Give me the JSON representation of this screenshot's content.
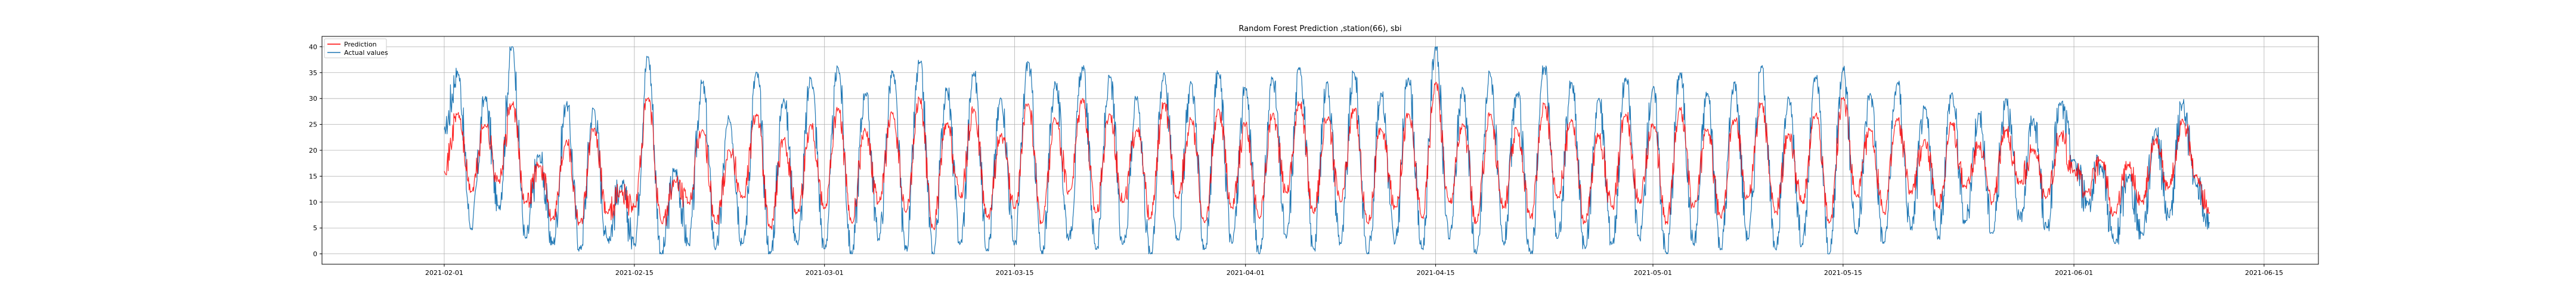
{
  "chart_data": {
    "type": "line",
    "title": "Random Forest Prediction ,station(66), sbi",
    "xlabel": "",
    "ylabel": "",
    "x_range": [
      "2021-01-23",
      "2021-06-19"
    ],
    "ylim": [
      -2,
      42
    ],
    "grid": true,
    "legend_position": "top-left",
    "x_ticks": [
      "2021-02-01",
      "2021-02-15",
      "2021-03-01",
      "2021-03-15",
      "2021-04-01",
      "2021-04-15",
      "2021-05-01",
      "2021-05-15",
      "2021-06-01",
      "2021-06-15"
    ],
    "y_ticks": [
      0,
      5,
      10,
      15,
      20,
      25,
      30,
      35,
      40
    ],
    "data_start": "2021-02-01",
    "data_end": "2021-06-11",
    "series": [
      {
        "name": "Prediction",
        "color": "#ff0000",
        "points": [
          [
            "2021-02-01",
            16
          ],
          [
            "2021-02-02",
            27
          ],
          [
            "2021-02-03",
            12
          ],
          [
            "2021-02-04",
            25
          ],
          [
            "2021-02-05",
            14
          ],
          [
            "2021-02-06",
            29
          ],
          [
            "2021-02-07",
            10
          ],
          [
            "2021-02-08",
            17
          ],
          [
            "2021-02-09",
            7
          ],
          [
            "2021-02-10",
            22
          ],
          [
            "2021-02-11",
            6
          ],
          [
            "2021-02-12",
            24
          ],
          [
            "2021-02-13",
            8
          ],
          [
            "2021-02-14",
            12
          ],
          [
            "2021-02-15",
            9
          ],
          [
            "2021-02-16",
            30
          ],
          [
            "2021-02-17",
            6
          ],
          [
            "2021-02-18",
            14
          ],
          [
            "2021-02-19",
            10
          ],
          [
            "2021-02-20",
            24
          ],
          [
            "2021-02-21",
            6
          ],
          [
            "2021-02-22",
            20
          ],
          [
            "2021-02-23",
            11
          ],
          [
            "2021-02-24",
            27
          ],
          [
            "2021-02-25",
            5
          ],
          [
            "2021-02-26",
            22
          ],
          [
            "2021-02-27",
            8
          ],
          [
            "2021-02-28",
            25
          ],
          [
            "2021-03-01",
            9
          ],
          [
            "2021-03-02",
            28
          ],
          [
            "2021-03-03",
            6
          ],
          [
            "2021-03-04",
            24
          ],
          [
            "2021-03-05",
            10
          ],
          [
            "2021-03-06",
            27
          ],
          [
            "2021-03-07",
            8
          ],
          [
            "2021-03-08",
            30
          ],
          [
            "2021-03-09",
            5
          ],
          [
            "2021-03-10",
            25
          ],
          [
            "2021-03-11",
            11
          ],
          [
            "2021-03-12",
            28
          ],
          [
            "2021-03-13",
            7
          ],
          [
            "2021-03-14",
            23
          ],
          [
            "2021-03-15",
            9
          ],
          [
            "2021-03-16",
            29
          ],
          [
            "2021-03-17",
            6
          ],
          [
            "2021-03-18",
            26
          ],
          [
            "2021-03-19",
            12
          ],
          [
            "2021-03-20",
            30
          ],
          [
            "2021-03-21",
            8
          ],
          [
            "2021-03-22",
            27
          ],
          [
            "2021-03-23",
            10
          ],
          [
            "2021-03-24",
            24
          ],
          [
            "2021-03-25",
            7
          ],
          [
            "2021-03-26",
            29
          ],
          [
            "2021-03-27",
            11
          ],
          [
            "2021-03-28",
            26
          ],
          [
            "2021-03-29",
            6
          ],
          [
            "2021-03-30",
            28
          ],
          [
            "2021-03-31",
            9
          ],
          [
            "2021-04-01",
            25
          ],
          [
            "2021-04-02",
            7
          ],
          [
            "2021-04-03",
            27
          ],
          [
            "2021-04-04",
            12
          ],
          [
            "2021-04-05",
            29
          ],
          [
            "2021-04-06",
            8
          ],
          [
            "2021-04-07",
            26
          ],
          [
            "2021-04-08",
            10
          ],
          [
            "2021-04-09",
            28
          ],
          [
            "2021-04-10",
            6
          ],
          [
            "2021-04-11",
            24
          ],
          [
            "2021-04-12",
            9
          ],
          [
            "2021-04-13",
            27
          ],
          [
            "2021-04-14",
            7
          ],
          [
            "2021-04-15",
            33
          ],
          [
            "2021-04-16",
            10
          ],
          [
            "2021-04-17",
            25
          ],
          [
            "2021-04-18",
            6
          ],
          [
            "2021-04-19",
            27
          ],
          [
            "2021-04-20",
            9
          ],
          [
            "2021-04-21",
            24
          ],
          [
            "2021-04-22",
            7
          ],
          [
            "2021-04-23",
            29
          ],
          [
            "2021-04-24",
            11
          ],
          [
            "2021-04-25",
            26
          ],
          [
            "2021-04-26",
            6
          ],
          [
            "2021-04-27",
            23
          ],
          [
            "2021-04-28",
            9
          ],
          [
            "2021-04-29",
            27
          ],
          [
            "2021-04-30",
            10
          ],
          [
            "2021-05-01",
            25
          ],
          [
            "2021-05-02",
            6
          ],
          [
            "2021-05-03",
            28
          ],
          [
            "2021-05-04",
            9
          ],
          [
            "2021-05-05",
            24
          ],
          [
            "2021-05-06",
            7
          ],
          [
            "2021-05-07",
            26
          ],
          [
            "2021-05-08",
            11
          ],
          [
            "2021-05-09",
            29
          ],
          [
            "2021-05-10",
            8
          ],
          [
            "2021-05-11",
            23
          ],
          [
            "2021-05-12",
            10
          ],
          [
            "2021-05-13",
            27
          ],
          [
            "2021-05-14",
            6
          ],
          [
            "2021-05-15",
            30
          ],
          [
            "2021-05-16",
            11
          ],
          [
            "2021-05-17",
            24
          ],
          [
            "2021-05-18",
            8
          ],
          [
            "2021-05-19",
            26
          ],
          [
            "2021-05-20",
            12
          ],
          [
            "2021-05-21",
            22
          ],
          [
            "2021-05-22",
            9
          ],
          [
            "2021-05-23",
            25
          ],
          [
            "2021-05-24",
            13
          ],
          [
            "2021-05-25",
            21
          ],
          [
            "2021-05-26",
            10
          ],
          [
            "2021-05-27",
            24
          ],
          [
            "2021-05-28",
            14
          ],
          [
            "2021-05-29",
            20
          ],
          [
            "2021-05-30",
            11
          ],
          [
            "2021-05-31",
            23
          ],
          [
            "2021-06-01",
            16
          ],
          [
            "2021-06-02",
            12
          ],
          [
            "2021-06-03",
            18
          ],
          [
            "2021-06-04",
            8
          ],
          [
            "2021-06-05",
            17
          ],
          [
            "2021-06-06",
            10
          ],
          [
            "2021-06-07",
            22
          ],
          [
            "2021-06-08",
            13
          ],
          [
            "2021-06-09",
            26
          ],
          [
            "2021-06-10",
            15
          ],
          [
            "2021-06-11",
            8
          ]
        ]
      },
      {
        "name": "Actual values",
        "color": "#1f77b4",
        "points": [
          [
            "2021-02-01",
            24
          ],
          [
            "2021-02-02",
            35
          ],
          [
            "2021-02-03",
            5
          ],
          [
            "2021-02-04",
            30
          ],
          [
            "2021-02-05",
            9
          ],
          [
            "2021-02-06",
            40
          ],
          [
            "2021-02-07",
            3
          ],
          [
            "2021-02-08",
            19
          ],
          [
            "2021-02-09",
            2
          ],
          [
            "2021-02-10",
            29
          ],
          [
            "2021-02-11",
            1
          ],
          [
            "2021-02-12",
            28
          ],
          [
            "2021-02-13",
            3
          ],
          [
            "2021-02-14",
            13
          ],
          [
            "2021-02-15",
            2
          ],
          [
            "2021-02-16",
            38
          ],
          [
            "2021-02-17",
            0
          ],
          [
            "2021-02-18",
            16
          ],
          [
            "2021-02-19",
            2
          ],
          [
            "2021-02-20",
            33
          ],
          [
            "2021-02-21",
            1
          ],
          [
            "2021-02-22",
            26
          ],
          [
            "2021-02-23",
            2
          ],
          [
            "2021-02-24",
            35
          ],
          [
            "2021-02-25",
            0
          ],
          [
            "2021-02-26",
            30
          ],
          [
            "2021-02-27",
            2
          ],
          [
            "2021-02-28",
            34
          ],
          [
            "2021-03-01",
            1
          ],
          [
            "2021-03-02",
            36
          ],
          [
            "2021-03-03",
            0
          ],
          [
            "2021-03-04",
            31
          ],
          [
            "2021-03-05",
            3
          ],
          [
            "2021-03-06",
            35
          ],
          [
            "2021-03-07",
            1
          ],
          [
            "2021-03-08",
            37
          ],
          [
            "2021-03-09",
            0
          ],
          [
            "2021-03-10",
            32
          ],
          [
            "2021-03-11",
            2
          ],
          [
            "2021-03-12",
            35
          ],
          [
            "2021-03-13",
            1
          ],
          [
            "2021-03-14",
            30
          ],
          [
            "2021-03-15",
            2
          ],
          [
            "2021-03-16",
            37
          ],
          [
            "2021-03-17",
            0
          ],
          [
            "2021-03-18",
            33
          ],
          [
            "2021-03-19",
            3
          ],
          [
            "2021-03-20",
            36
          ],
          [
            "2021-03-21",
            1
          ],
          [
            "2021-03-22",
            34
          ],
          [
            "2021-03-23",
            2
          ],
          [
            "2021-03-24",
            30
          ],
          [
            "2021-03-25",
            0
          ],
          [
            "2021-03-26",
            35
          ],
          [
            "2021-03-27",
            3
          ],
          [
            "2021-03-28",
            33
          ],
          [
            "2021-03-29",
            1
          ],
          [
            "2021-03-30",
            35
          ],
          [
            "2021-03-31",
            2
          ],
          [
            "2021-04-01",
            32
          ],
          [
            "2021-04-02",
            0
          ],
          [
            "2021-04-03",
            34
          ],
          [
            "2021-04-04",
            3
          ],
          [
            "2021-04-05",
            36
          ],
          [
            "2021-04-06",
            1
          ],
          [
            "2021-04-07",
            33
          ],
          [
            "2021-04-08",
            2
          ],
          [
            "2021-04-09",
            35
          ],
          [
            "2021-04-10",
            0
          ],
          [
            "2021-04-11",
            31
          ],
          [
            "2021-04-12",
            2
          ],
          [
            "2021-04-13",
            34
          ],
          [
            "2021-04-14",
            1
          ],
          [
            "2021-04-15",
            40
          ],
          [
            "2021-04-16",
            3
          ],
          [
            "2021-04-17",
            32
          ],
          [
            "2021-04-18",
            0
          ],
          [
            "2021-04-19",
            35
          ],
          [
            "2021-04-20",
            2
          ],
          [
            "2021-04-21",
            31
          ],
          [
            "2021-04-22",
            0
          ],
          [
            "2021-04-23",
            36
          ],
          [
            "2021-04-24",
            3
          ],
          [
            "2021-04-25",
            33
          ],
          [
            "2021-04-26",
            1
          ],
          [
            "2021-04-27",
            30
          ],
          [
            "2021-04-28",
            2
          ],
          [
            "2021-04-29",
            34
          ],
          [
            "2021-04-30",
            3
          ],
          [
            "2021-05-01",
            32
          ],
          [
            "2021-05-02",
            0
          ],
          [
            "2021-05-03",
            35
          ],
          [
            "2021-05-04",
            2
          ],
          [
            "2021-05-05",
            31
          ],
          [
            "2021-05-06",
            1
          ],
          [
            "2021-05-07",
            33
          ],
          [
            "2021-05-08",
            3
          ],
          [
            "2021-05-09",
            36
          ],
          [
            "2021-05-10",
            1
          ],
          [
            "2021-05-11",
            30
          ],
          [
            "2021-05-12",
            2
          ],
          [
            "2021-05-13",
            34
          ],
          [
            "2021-05-14",
            0
          ],
          [
            "2021-05-15",
            36
          ],
          [
            "2021-05-16",
            4
          ],
          [
            "2021-05-17",
            31
          ],
          [
            "2021-05-18",
            2
          ],
          [
            "2021-05-19",
            33
          ],
          [
            "2021-05-20",
            5
          ],
          [
            "2021-05-21",
            28
          ],
          [
            "2021-05-22",
            3
          ],
          [
            "2021-05-23",
            31
          ],
          [
            "2021-05-24",
            6
          ],
          [
            "2021-05-25",
            27
          ],
          [
            "2021-05-26",
            4
          ],
          [
            "2021-05-27",
            30
          ],
          [
            "2021-05-28",
            7
          ],
          [
            "2021-05-29",
            26
          ],
          [
            "2021-05-30",
            5
          ],
          [
            "2021-05-31",
            29
          ],
          [
            "2021-06-01",
            18
          ],
          [
            "2021-06-02",
            10
          ],
          [
            "2021-06-03",
            17
          ],
          [
            "2021-06-04",
            2
          ],
          [
            "2021-06-05",
            15
          ],
          [
            "2021-06-06",
            4
          ],
          [
            "2021-06-07",
            24
          ],
          [
            "2021-06-08",
            7
          ],
          [
            "2021-06-09",
            29
          ],
          [
            "2021-06-10",
            13
          ],
          [
            "2021-06-11",
            6
          ]
        ]
      }
    ]
  }
}
